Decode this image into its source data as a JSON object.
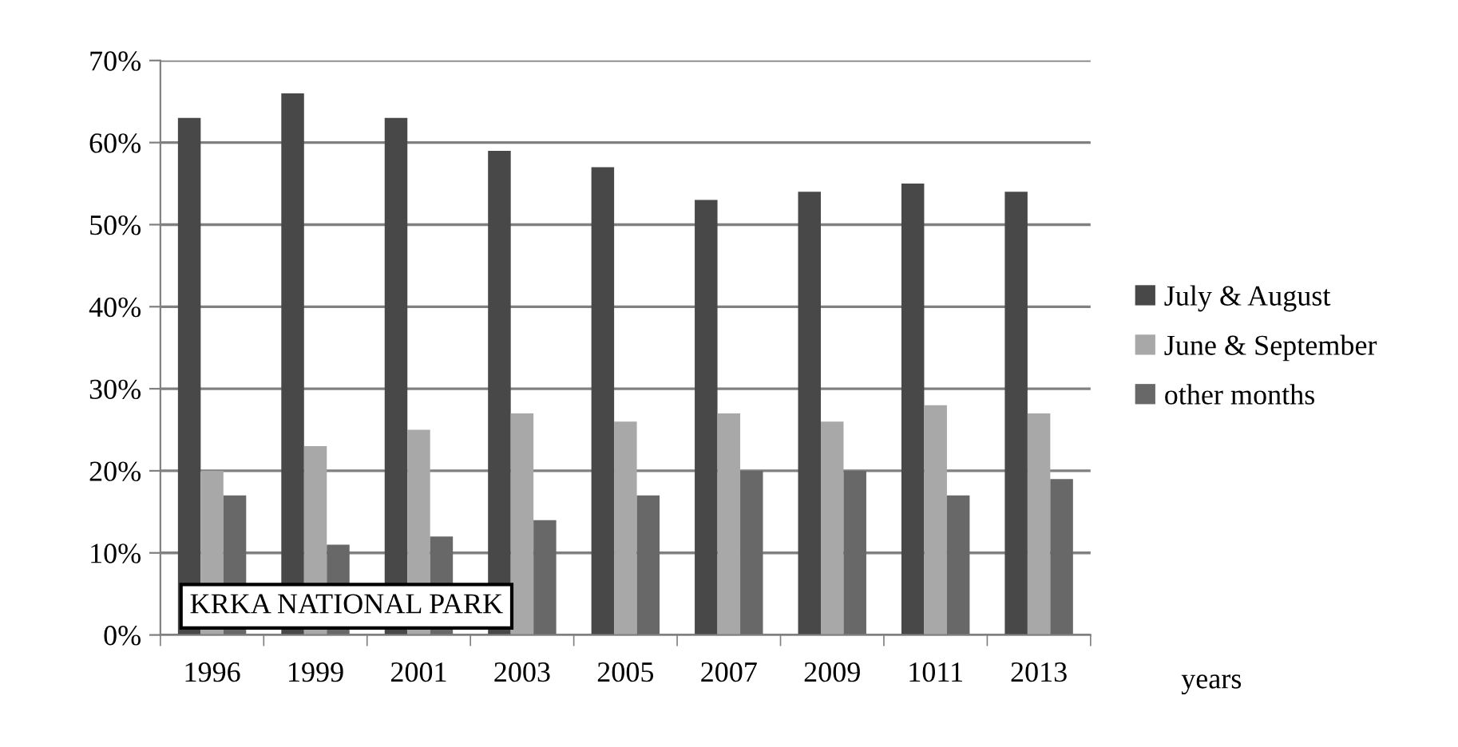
{
  "chart_data": {
    "type": "bar",
    "xlabel": "years",
    "categories": [
      "1996",
      "1999",
      "2001",
      "2003",
      "2005",
      "2007",
      "2009",
      "1011",
      "2013"
    ],
    "series": [
      {
        "name": "July & August",
        "color": "#484848",
        "values": [
          63,
          66,
          63,
          59,
          57,
          53,
          54,
          55,
          54
        ]
      },
      {
        "name": "June & September",
        "color": "#a8a8a8",
        "values": [
          20,
          23,
          25,
          27,
          26,
          27,
          26,
          28,
          27
        ]
      },
      {
        "name": "other months",
        "color": "#686868",
        "values": [
          17,
          11,
          12,
          14,
          17,
          20,
          20,
          17,
          19
        ]
      }
    ],
    "ylim": [
      0,
      70
    ],
    "yticks": [
      {
        "value": 0,
        "label": "0%"
      },
      {
        "value": 10,
        "label": "10%"
      },
      {
        "value": 20,
        "label": "20%"
      },
      {
        "value": 30,
        "label": "30%"
      },
      {
        "value": 40,
        "label": "40%"
      },
      {
        "value": 50,
        "label": "50%"
      },
      {
        "value": 60,
        "label": "60%"
      },
      {
        "value": 70,
        "label": "70%"
      }
    ],
    "grid": "y",
    "legend": "right",
    "annotations": [
      "KRKA NATIONAL PARK"
    ]
  }
}
